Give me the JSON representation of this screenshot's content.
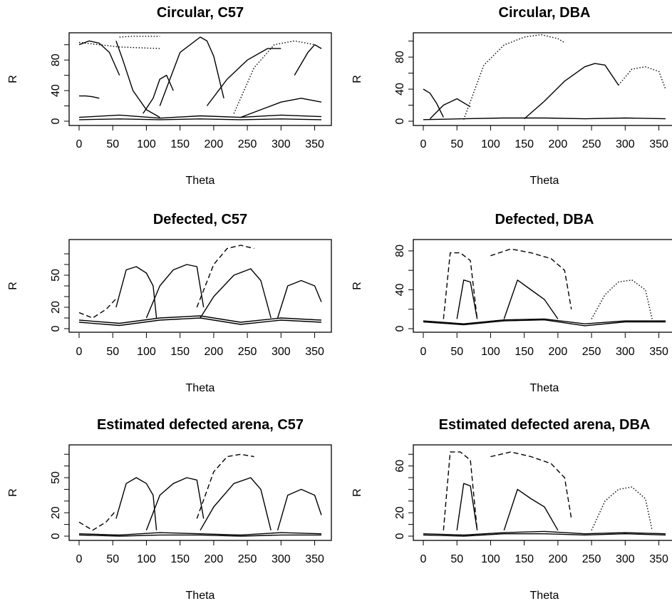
{
  "figure": {
    "panels": [
      {
        "id": "circ-c57",
        "title": "Circular, C57",
        "xlabel": "Theta",
        "ylabel": "R"
      },
      {
        "id": "circ-dba",
        "title": "Circular, DBA",
        "xlabel": "Theta",
        "ylabel": "R"
      },
      {
        "id": "def-c57",
        "title": "Defected, C57",
        "xlabel": "Theta",
        "ylabel": "R"
      },
      {
        "id": "def-dba",
        "title": "Defected, DBA",
        "xlabel": "Theta",
        "ylabel": "R"
      },
      {
        "id": "est-c57",
        "title": "Estimated defected arena, C57",
        "xlabel": "Theta",
        "ylabel": "R"
      },
      {
        "id": "est-dba",
        "title": "Estimated defected arena, DBA",
        "xlabel": "Theta",
        "ylabel": "R"
      }
    ]
  },
  "chart_data": [
    {
      "type": "line",
      "title": "Circular, C57",
      "xlabel": "Theta",
      "ylabel": "R",
      "xlim": [
        0,
        360
      ],
      "ylim": [
        0,
        110
      ],
      "xticks": [
        0,
        50,
        100,
        150,
        200,
        250,
        300,
        350
      ],
      "yticks": [
        0,
        20,
        40,
        60,
        80,
        100
      ],
      "ytick_labels": [
        "0",
        "",
        "40",
        "",
        "80",
        ""
      ],
      "grid": false,
      "series": [
        {
          "style": "dotted",
          "x": [
            0,
            30,
            60,
            90,
            120
          ],
          "y": [
            103,
            100,
            97,
            96,
            95
          ]
        },
        {
          "style": "dotted",
          "x": [
            60,
            80,
            100,
            120
          ],
          "y": [
            110,
            111,
            111,
            111
          ]
        },
        {
          "style": "solid",
          "x": [
            0,
            15,
            30,
            45,
            60
          ],
          "y": [
            100,
            105,
            102,
            90,
            60
          ]
        },
        {
          "style": "solid",
          "x": [
            55,
            65,
            80,
            100,
            120
          ],
          "y": [
            105,
            80,
            40,
            15,
            5
          ]
        },
        {
          "style": "solid",
          "x": [
            120,
            150,
            180,
            190,
            200,
            215
          ],
          "y": [
            20,
            90,
            110,
            105,
            85,
            30
          ]
        },
        {
          "style": "solid",
          "x": [
            190,
            220,
            250,
            280,
            300
          ],
          "y": [
            20,
            55,
            80,
            95,
            95
          ]
        },
        {
          "style": "dotted",
          "x": [
            230,
            260,
            290,
            320,
            350,
            360
          ],
          "y": [
            10,
            70,
            100,
            105,
            100,
            95
          ]
        },
        {
          "style": "solid",
          "x": [
            320,
            340,
            350,
            360
          ],
          "y": [
            60,
            90,
            100,
            95
          ]
        },
        {
          "style": "solid",
          "x": [
            0,
            10,
            20,
            30
          ],
          "y": [
            33,
            33,
            32,
            30
          ]
        },
        {
          "style": "solid",
          "x": [
            95,
            110,
            120,
            130,
            140
          ],
          "y": [
            10,
            30,
            55,
            60,
            40
          ]
        },
        {
          "style": "solid",
          "x": [
            240,
            270,
            300,
            330,
            360
          ],
          "y": [
            5,
            15,
            25,
            30,
            25
          ]
        },
        {
          "style": "solid",
          "x": [
            0,
            60,
            120,
            180,
            240,
            300,
            360
          ],
          "y": [
            5,
            8,
            4,
            7,
            5,
            8,
            6
          ]
        },
        {
          "style": "solid",
          "x": [
            0,
            60,
            120,
            180,
            240,
            300,
            360
          ],
          "y": [
            2,
            3,
            2,
            3,
            2,
            3,
            2
          ]
        }
      ]
    },
    {
      "type": "line",
      "title": "Circular, DBA",
      "xlabel": "Theta",
      "ylabel": "R",
      "xlim": [
        0,
        360
      ],
      "ylim": [
        0,
        105
      ],
      "xticks": [
        0,
        50,
        100,
        150,
        200,
        250,
        300,
        350
      ],
      "yticks": [
        0,
        20,
        40,
        60,
        80,
        100
      ],
      "ytick_labels": [
        "0",
        "",
        "40",
        "",
        "80",
        ""
      ],
      "grid": false,
      "series": [
        {
          "style": "dotted",
          "x": [
            60,
            90,
            120,
            150,
            175,
            200,
            210
          ],
          "y": [
            2,
            70,
            95,
            105,
            108,
            103,
            98
          ]
        },
        {
          "style": "solid",
          "x": [
            150,
            180,
            210,
            240,
            255,
            270,
            290
          ],
          "y": [
            3,
            25,
            50,
            68,
            72,
            70,
            45
          ]
        },
        {
          "style": "dotted",
          "x": [
            290,
            310,
            330,
            350,
            360
          ],
          "y": [
            45,
            65,
            68,
            62,
            40
          ]
        },
        {
          "style": "solid",
          "x": [
            0,
            10,
            20,
            30
          ],
          "y": [
            40,
            35,
            22,
            5
          ]
        },
        {
          "style": "solid",
          "x": [
            10,
            30,
            50,
            70
          ],
          "y": [
            3,
            20,
            28,
            18
          ]
        },
        {
          "style": "solid",
          "x": [
            0,
            60,
            120,
            180,
            240,
            300,
            360
          ],
          "y": [
            2,
            3,
            4,
            4,
            3,
            4,
            3
          ]
        }
      ]
    },
    {
      "type": "line",
      "title": "Defected, C57",
      "xlabel": "Theta",
      "ylabel": "R",
      "xlim": [
        0,
        360
      ],
      "ylim": [
        0,
        80
      ],
      "xticks": [
        0,
        50,
        100,
        150,
        200,
        250,
        300,
        350
      ],
      "yticks": [
        0,
        10,
        20,
        30,
        40,
        50,
        60,
        70
      ],
      "ytick_labels": [
        "0",
        "",
        "20",
        "",
        "",
        "50",
        "",
        ""
      ],
      "grid": false,
      "series": [
        {
          "style": "solid",
          "x": [
            55,
            70,
            85,
            100,
            110,
            115
          ],
          "y": [
            20,
            55,
            58,
            52,
            40,
            10
          ]
        },
        {
          "style": "solid",
          "x": [
            100,
            120,
            140,
            160,
            175,
            185
          ],
          "y": [
            10,
            40,
            55,
            60,
            58,
            20
          ]
        },
        {
          "style": "dashed",
          "x": [
            175,
            200,
            220,
            240,
            260
          ],
          "y": [
            20,
            60,
            75,
            78,
            75
          ]
        },
        {
          "style": "solid",
          "x": [
            180,
            200,
            230,
            255,
            270,
            285
          ],
          "y": [
            10,
            30,
            50,
            56,
            45,
            10
          ]
        },
        {
          "style": "solid",
          "x": [
            295,
            310,
            330,
            350,
            360
          ],
          "y": [
            10,
            40,
            45,
            40,
            25
          ]
        },
        {
          "style": "dashed",
          "x": [
            0,
            20,
            40,
            55
          ],
          "y": [
            15,
            10,
            18,
            28
          ]
        },
        {
          "style": "solid",
          "x": [
            0,
            60,
            120,
            180,
            240,
            300,
            360
          ],
          "y": [
            8,
            5,
            10,
            12,
            6,
            10,
            8
          ]
        },
        {
          "style": "solid",
          "x": [
            0,
            60,
            120,
            180,
            240,
            300,
            360
          ],
          "y": [
            6,
            3,
            8,
            10,
            4,
            8,
            6
          ]
        }
      ]
    },
    {
      "type": "line",
      "title": "Defected, DBA",
      "xlabel": "Theta",
      "ylabel": "R",
      "xlim": [
        0,
        360
      ],
      "ylim": [
        0,
        88
      ],
      "xticks": [
        0,
        50,
        100,
        150,
        200,
        250,
        300,
        350
      ],
      "yticks": [
        0,
        20,
        40,
        60,
        80
      ],
      "ytick_labels": [
        "0",
        "",
        "40",
        "",
        "80"
      ],
      "grid": false,
      "series": [
        {
          "style": "dashed",
          "x": [
            30,
            40,
            55,
            70,
            80
          ],
          "y": [
            10,
            78,
            78,
            70,
            10
          ]
        },
        {
          "style": "solid",
          "x": [
            50,
            60,
            70,
            80
          ],
          "y": [
            10,
            50,
            48,
            10
          ]
        },
        {
          "style": "dashed",
          "x": [
            100,
            130,
            160,
            190,
            210,
            220
          ],
          "y": [
            75,
            82,
            78,
            72,
            60,
            20
          ]
        },
        {
          "style": "solid",
          "x": [
            120,
            140,
            160,
            180,
            200
          ],
          "y": [
            10,
            50,
            40,
            30,
            10
          ]
        },
        {
          "style": "dotted",
          "x": [
            250,
            270,
            290,
            310,
            330,
            340
          ],
          "y": [
            10,
            35,
            48,
            50,
            40,
            10
          ]
        },
        {
          "style": "solid",
          "x": [
            0,
            60,
            120,
            180,
            240,
            300,
            360
          ],
          "y": [
            8,
            5,
            9,
            10,
            5,
            8,
            8
          ]
        },
        {
          "style": "solid",
          "x": [
            0,
            60,
            120,
            180,
            240,
            300,
            360
          ],
          "y": [
            7,
            4,
            8,
            9,
            3,
            7,
            7
          ]
        }
      ]
    },
    {
      "type": "line",
      "title": "Estimated defected arena, C57",
      "xlabel": "Theta",
      "ylabel": "R",
      "xlim": [
        0,
        360
      ],
      "ylim": [
        0,
        75
      ],
      "xticks": [
        0,
        50,
        100,
        150,
        200,
        250,
        300,
        350
      ],
      "yticks": [
        0,
        10,
        20,
        30,
        40,
        50,
        60,
        70
      ],
      "ytick_labels": [
        "0",
        "",
        "20",
        "",
        "",
        "50",
        "",
        ""
      ],
      "grid": false,
      "series": [
        {
          "style": "solid",
          "x": [
            55,
            70,
            85,
            100,
            110,
            115
          ],
          "y": [
            15,
            45,
            50,
            45,
            35,
            5
          ]
        },
        {
          "style": "solid",
          "x": [
            100,
            120,
            140,
            160,
            175,
            185
          ],
          "y": [
            5,
            35,
            45,
            50,
            48,
            15
          ]
        },
        {
          "style": "dashed",
          "x": [
            175,
            200,
            220,
            240,
            260
          ],
          "y": [
            15,
            55,
            68,
            70,
            68
          ]
        },
        {
          "style": "solid",
          "x": [
            180,
            200,
            230,
            255,
            270,
            285
          ],
          "y": [
            5,
            25,
            45,
            50,
            40,
            5
          ]
        },
        {
          "style": "solid",
          "x": [
            295,
            310,
            330,
            350,
            360
          ],
          "y": [
            5,
            35,
            40,
            35,
            18
          ]
        },
        {
          "style": "dashed",
          "x": [
            0,
            20,
            40,
            55
          ],
          "y": [
            12,
            5,
            12,
            22
          ]
        },
        {
          "style": "solid",
          "x": [
            0,
            60,
            120,
            180,
            240,
            300,
            360
          ],
          "y": [
            2,
            1,
            3,
            2,
            1,
            3,
            2
          ]
        },
        {
          "style": "solid",
          "x": [
            0,
            60,
            120,
            180,
            240,
            300,
            360
          ],
          "y": [
            1,
            0,
            1,
            1,
            0,
            1,
            1
          ]
        }
      ]
    },
    {
      "type": "line",
      "title": "Estimated defected arena, DBA",
      "xlabel": "Theta",
      "ylabel": "R",
      "xlim": [
        0,
        360
      ],
      "ylim": [
        0,
        75
      ],
      "xticks": [
        0,
        50,
        100,
        150,
        200,
        250,
        300,
        350
      ],
      "yticks": [
        0,
        10,
        20,
        30,
        40,
        50,
        60,
        70
      ],
      "ytick_labels": [
        "0",
        "",
        "20",
        "",
        "",
        "",
        "60",
        ""
      ],
      "grid": false,
      "series": [
        {
          "style": "dashed",
          "x": [
            30,
            40,
            55,
            70,
            80
          ],
          "y": [
            5,
            72,
            72,
            65,
            5
          ]
        },
        {
          "style": "solid",
          "x": [
            50,
            60,
            70,
            80
          ],
          "y": [
            5,
            45,
            43,
            5
          ]
        },
        {
          "style": "dashed",
          "x": [
            100,
            130,
            160,
            190,
            210,
            220
          ],
          "y": [
            68,
            72,
            68,
            62,
            50,
            15
          ]
        },
        {
          "style": "solid",
          "x": [
            120,
            140,
            160,
            180,
            200
          ],
          "y": [
            5,
            40,
            32,
            25,
            5
          ]
        },
        {
          "style": "dotted",
          "x": [
            250,
            270,
            290,
            310,
            330,
            340
          ],
          "y": [
            5,
            30,
            40,
            42,
            32,
            5
          ]
        },
        {
          "style": "solid",
          "x": [
            0,
            60,
            120,
            180,
            240,
            300,
            360
          ],
          "y": [
            2,
            1,
            3,
            4,
            2,
            3,
            2
          ]
        },
        {
          "style": "solid",
          "x": [
            0,
            60,
            120,
            180,
            240,
            300,
            360
          ],
          "y": [
            1,
            0,
            2,
            2,
            1,
            2,
            1
          ]
        }
      ]
    }
  ]
}
